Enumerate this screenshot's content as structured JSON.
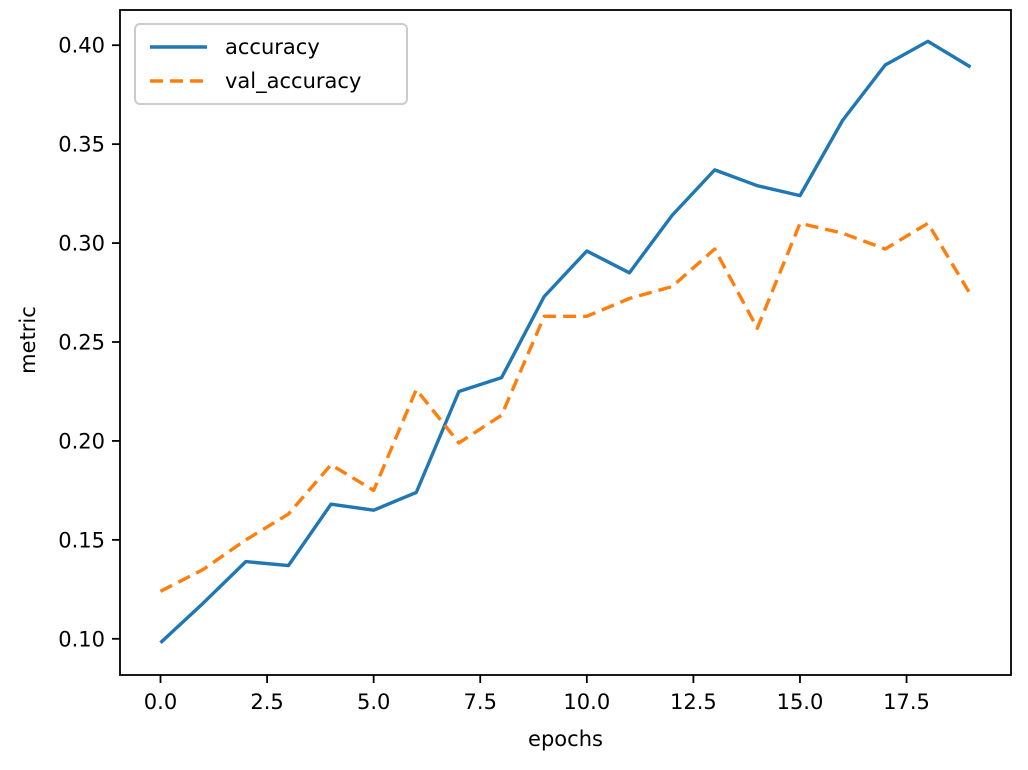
{
  "figure": {
    "background": "#ffffff",
    "spine_color": "#000000",
    "text_color": "#000000"
  },
  "chart_data": {
    "type": "line",
    "title": "",
    "xlabel": "epochs",
    "ylabel": "metric",
    "x": [
      0,
      1,
      2,
      3,
      4,
      5,
      6,
      7,
      8,
      9,
      10,
      11,
      12,
      13,
      14,
      15,
      16,
      17,
      18,
      19
    ],
    "series": [
      {
        "name": "accuracy",
        "color": "#1f77b4",
        "style": "solid",
        "values": [
          0.098,
          0.118,
          0.139,
          0.137,
          0.168,
          0.165,
          0.174,
          0.225,
          0.232,
          0.273,
          0.296,
          0.285,
          0.314,
          0.337,
          0.329,
          0.324,
          0.362,
          0.39,
          0.402,
          0.389
        ]
      },
      {
        "name": "val_accuracy",
        "color": "#ff7f0e",
        "style": "dashed",
        "values": [
          0.124,
          0.135,
          0.15,
          0.163,
          0.188,
          0.175,
          0.226,
          0.199,
          0.213,
          0.263,
          0.263,
          0.272,
          0.278,
          0.297,
          0.257,
          0.31,
          0.305,
          0.297,
          0.31,
          0.274
        ]
      }
    ],
    "xlim": [
      -0.95,
      19.95
    ],
    "ylim": [
      0.0817,
      0.4178
    ],
    "xticks": {
      "values": [
        0,
        2.5,
        5,
        7.5,
        10,
        12.5,
        15,
        17.5
      ],
      "labels": [
        "0.0",
        "2.5",
        "5.0",
        "7.5",
        "10.0",
        "12.5",
        "15.0",
        "17.5"
      ]
    },
    "yticks": {
      "values": [
        0.1,
        0.15,
        0.2,
        0.25,
        0.3,
        0.35,
        0.4
      ],
      "labels": [
        "0.10",
        "0.15",
        "0.20",
        "0.25",
        "0.30",
        "0.35",
        "0.40"
      ]
    },
    "grid": false,
    "legend_position": "upper left"
  }
}
